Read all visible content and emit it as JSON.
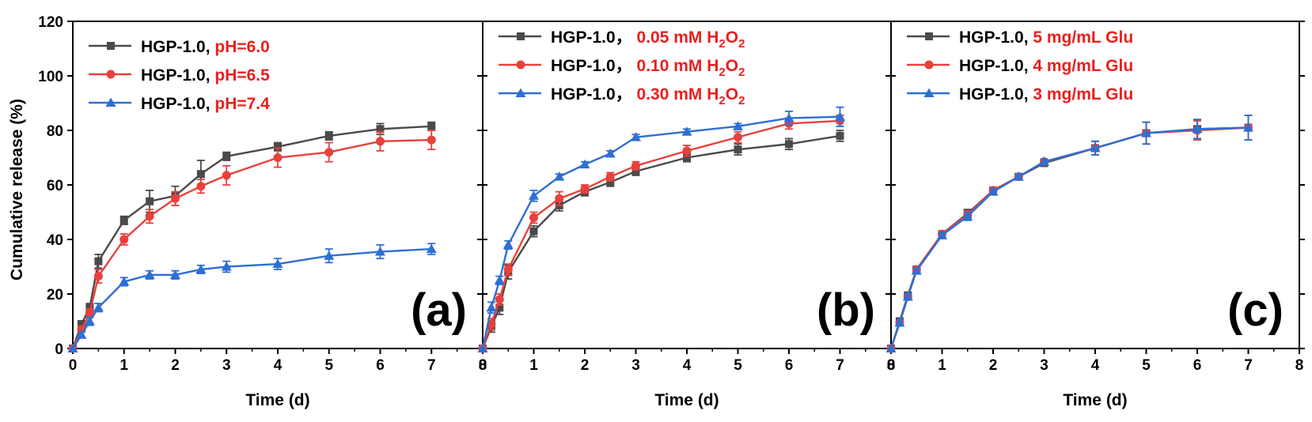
{
  "chart_data": [
    {
      "type": "line",
      "panel_label": "(a)",
      "xlabel": "Time (d)",
      "ylabel": "Cumulative release (%)",
      "xlim": [
        0,
        8
      ],
      "ylim": [
        0,
        120
      ],
      "x_ticks": [
        "0",
        "1",
        "2",
        "3",
        "4",
        "5",
        "6",
        "7",
        "8"
      ],
      "y_ticks": [
        "0",
        "20",
        "40",
        "60",
        "80",
        "100",
        "120"
      ],
      "legend_position": "top-left",
      "series": [
        {
          "name": "HGP-1.0, pH=6.0",
          "prefix": "HGP-1.0, ",
          "condition": "pH=6.0",
          "marker": "square",
          "color": "#4a4a4a",
          "x": [
            0,
            0.17,
            0.33,
            0.5,
            1,
            1.5,
            2,
            2.5,
            3,
            4,
            5,
            6,
            7
          ],
          "y": [
            0,
            9,
            15,
            32,
            47,
            54,
            56,
            64,
            70.5,
            74,
            78,
            80.5,
            81.5
          ],
          "err": [
            0,
            1,
            1.5,
            2.5,
            1.5,
            4,
            3.5,
            5,
            1.5,
            1.5,
            1.5,
            2,
            1.5
          ]
        },
        {
          "name": "HGP-1.0, pH=6.5",
          "prefix": "HGP-1.0, ",
          "condition": "pH=6.5",
          "marker": "circle",
          "color": "#e8413c",
          "x": [
            0,
            0.17,
            0.33,
            0.5,
            1,
            1.5,
            2,
            2.5,
            3,
            4,
            5,
            6,
            7
          ],
          "y": [
            0,
            7,
            13,
            26.5,
            40,
            48.5,
            55,
            59.5,
            63.5,
            70,
            72,
            76,
            76.5
          ],
          "err": [
            0,
            1,
            1.5,
            2.5,
            2,
            2.5,
            2.5,
            2.5,
            3.5,
            3.5,
            3.5,
            3.5,
            3.5
          ]
        },
        {
          "name": "HGP-1.0, pH=7.4",
          "prefix": "HGP-1.0, ",
          "condition": "pH=7.4",
          "marker": "triangle",
          "color": "#2e6fd3",
          "x": [
            0,
            0.17,
            0.33,
            0.5,
            1,
            1.5,
            2,
            2.5,
            3,
            4,
            5,
            6,
            7
          ],
          "y": [
            0,
            5,
            10,
            15,
            24.5,
            27,
            27,
            29,
            30,
            31,
            34,
            35.5,
            36.5
          ],
          "err": [
            0,
            1,
            1.5,
            1.5,
            1.5,
            1.5,
            1.5,
            1.5,
            2,
            2,
            2.5,
            2.5,
            2
          ]
        }
      ]
    },
    {
      "type": "line",
      "panel_label": "(b)",
      "xlabel": "Time (d)",
      "ylabel": "",
      "xlim": [
        0,
        8
      ],
      "ylim": [
        0,
        120
      ],
      "x_ticks": [
        "0",
        "1",
        "2",
        "3",
        "4",
        "5",
        "6",
        "7",
        "8"
      ],
      "y_ticks": [],
      "legend_position": "top-left",
      "series": [
        {
          "name": "HGP-1.0， 0.05 mM H2O2",
          "prefix": "HGP-1.0， ",
          "condition": "0.05 mM H",
          "sub": "2",
          "after": "O",
          "sub2": "2",
          "marker": "square",
          "color": "#4a4a4a",
          "x": [
            0,
            0.17,
            0.33,
            0.5,
            1,
            1.5,
            2,
            2.5,
            3,
            4,
            5,
            6,
            7
          ],
          "y": [
            0,
            8,
            15,
            28,
            43,
            52.5,
            57.5,
            61,
            65,
            70,
            73,
            75,
            78
          ],
          "err": [
            0,
            2,
            2.5,
            2.5,
            2,
            2,
            1.5,
            1.5,
            1.5,
            1.5,
            2,
            2,
            2
          ]
        },
        {
          "name": "HGP-1.0， 0.10 mM H2O2",
          "prefix": "HGP-1.0， ",
          "condition": "0.10 mM H",
          "sub": "2",
          "after": "O",
          "sub2": "2",
          "marker": "circle",
          "color": "#e8413c",
          "x": [
            0,
            0.17,
            0.33,
            0.5,
            1,
            1.5,
            2,
            2.5,
            3,
            4,
            5,
            6,
            7
          ],
          "y": [
            0,
            9,
            18,
            29,
            48,
            55,
            58.5,
            63,
            67,
            72.5,
            77.5,
            82.5,
            83.5
          ],
          "err": [
            0,
            2,
            2,
            2,
            2,
            2.5,
            1.5,
            1.5,
            1.5,
            2,
            2,
            2,
            2
          ]
        },
        {
          "name": "HGP-1.0， 0.30 mM H2O2",
          "prefix": "HGP-1.0， ",
          "condition": "0.30 mM H",
          "sub": "2",
          "after": "O",
          "sub2": "2",
          "marker": "triangle",
          "color": "#2e6fd3",
          "x": [
            0,
            0.17,
            0.33,
            0.5,
            1,
            1.5,
            2,
            2.5,
            3,
            4,
            5,
            6,
            7
          ],
          "y": [
            0,
            15,
            25,
            38,
            56,
            63,
            67.5,
            71.5,
            77.5,
            79.5,
            81.5,
            84.5,
            85
          ],
          "err": [
            0,
            2,
            1.5,
            1.5,
            2,
            1,
            1,
            1,
            1,
            1,
            1,
            2.5,
            3.5
          ]
        }
      ]
    },
    {
      "type": "line",
      "panel_label": "(c)",
      "xlabel": "Time (d)",
      "ylabel": "",
      "xlim": [
        0,
        8
      ],
      "ylim": [
        0,
        120
      ],
      "x_ticks": [
        "0",
        "1",
        "2",
        "3",
        "4",
        "5",
        "6",
        "7",
        "8"
      ],
      "y_ticks": [],
      "legend_position": "top-left",
      "series": [
        {
          "name": "HGP-1.0, 5 mg/mL Glu",
          "prefix": "HGP-1.0, ",
          "condition": "5 mg/mL Glu",
          "marker": "square",
          "color": "#4a4a4a",
          "x": [
            0,
            0.17,
            0.33,
            0.5,
            1,
            1.5,
            2,
            2.5,
            3,
            4,
            5,
            6,
            7
          ],
          "y": [
            0,
            10,
            19.5,
            29,
            42,
            49.5,
            58,
            63,
            68,
            73.5,
            79,
            80.5,
            81
          ],
          "err": [
            0,
            1,
            1,
            1,
            1,
            1.5,
            1,
            1,
            1,
            2.5,
            4,
            3.5,
            4.5
          ]
        },
        {
          "name": "HGP-1.0, 4 mg/mL Glu",
          "prefix": "HGP-1.0, ",
          "condition": "4 mg/mL Glu",
          "marker": "circle",
          "color": "#e8413c",
          "x": [
            0,
            0.17,
            0.33,
            0.5,
            1,
            1.5,
            2,
            2.5,
            3,
            4,
            5,
            6,
            7
          ],
          "y": [
            0,
            9.5,
            19,
            29,
            42,
            49,
            58,
            63,
            68.5,
            73.5,
            79,
            80,
            81
          ],
          "err": [
            0,
            1,
            1,
            1,
            1,
            1.5,
            1,
            1,
            1,
            2.5,
            4,
            3.5,
            4.5
          ]
        },
        {
          "name": "HGP-1.0, 3 mg/mL Glu",
          "prefix": "HGP-1.0, ",
          "condition": "3 mg/mL Glu",
          "marker": "triangle",
          "color": "#2e6fd3",
          "x": [
            0,
            0.17,
            0.33,
            0.5,
            1,
            1.5,
            2,
            2.5,
            3,
            4,
            5,
            6,
            7
          ],
          "y": [
            0,
            9.5,
            19,
            28.5,
            41.5,
            48.5,
            57.5,
            63,
            68.5,
            73.5,
            79,
            80.5,
            81
          ],
          "err": [
            0,
            1,
            1,
            1,
            1,
            1.5,
            1,
            1,
            1,
            2.5,
            4,
            3.5,
            4.5
          ]
        }
      ]
    }
  ],
  "colors": {
    "condition_text": "#e8201e",
    "axis": "#000000"
  }
}
